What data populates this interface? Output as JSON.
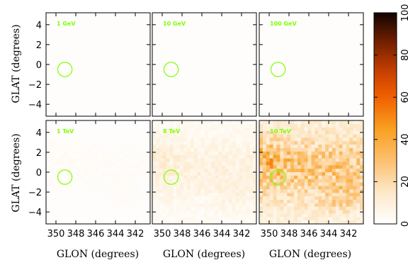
{
  "chart_data": {
    "type": "heatmap",
    "x_axis_label": "GLON (degrees)",
    "y_axis_label": "GLAT (degrees)",
    "x_ticks": [
      350,
      348,
      346,
      344,
      342
    ],
    "x_tick_labels": [
      "350",
      "348",
      "346",
      "344",
      "342"
    ],
    "y_ticks": [
      4,
      2,
      0,
      -2,
      -4
    ],
    "y_tick_labels": [
      "4",
      "2",
      "0",
      "−2",
      "−4"
    ],
    "xlim": [
      351.0,
      340.5
    ],
    "ylim": [
      -5.2,
      5.2
    ],
    "colorbar": {
      "range": [
        0,
        100
      ],
      "ticks": [
        0,
        20,
        40,
        60,
        80,
        100
      ],
      "tick_labels": [
        "0",
        "20",
        "40",
        "60",
        "80",
        "100"
      ]
    },
    "marker": {
      "shape": "circle",
      "glon": 349.1,
      "glat": -0.5,
      "radius_deg": 0.72
    },
    "panels": [
      {
        "title": "1 GeV",
        "row": 0,
        "col": 0,
        "intensity": 0.0
      },
      {
        "title": "10 GeV",
        "row": 0,
        "col": 1,
        "intensity": 0.0
      },
      {
        "title": "100 GeV",
        "row": 0,
        "col": 2,
        "intensity": 0.0
      },
      {
        "title": "1 TeV",
        "row": 1,
        "col": 0,
        "intensity": 0.03
      },
      {
        "title": "8 TeV",
        "row": 1,
        "col": 1,
        "intensity": 0.12
      },
      {
        "title": "10 TeV",
        "row": 1,
        "col": 2,
        "intensity": 0.38
      }
    ]
  },
  "colors": {
    "panel_label": "#7fff00",
    "marker": "#7fff00",
    "frame": "#000000"
  }
}
